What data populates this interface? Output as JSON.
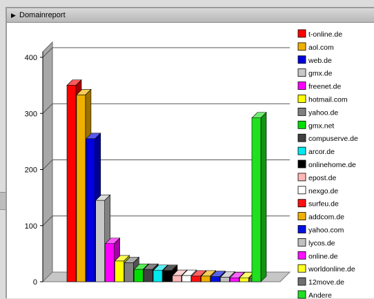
{
  "window": {
    "title": "Domainreport"
  },
  "chart_data": {
    "type": "bar",
    "title": "",
    "xlabel": "",
    "ylabel": "",
    "ylim": [
      0,
      400
    ],
    "yticks": [
      0,
      100,
      200,
      300,
      400
    ],
    "grid": true,
    "legend_position": "right",
    "categories": [
      "t-online.de",
      "aol.com",
      "web.de",
      "gmx.de",
      "freenet.de",
      "hotmail.com",
      "yahoo.de",
      "gmx.net",
      "compuserve.de",
      "arcor.de",
      "onlinehome.de",
      "epost.de",
      "nexgo.de",
      "surfeu.de",
      "addcom.de",
      "yahoo.com",
      "lycos.de",
      "online.de",
      "worldonline.de",
      "12move.de",
      "Andere"
    ],
    "values": [
      350,
      333,
      255,
      145,
      68,
      37,
      34,
      22,
      22,
      20,
      20,
      11,
      11,
      10,
      10,
      9,
      8,
      7,
      7,
      6,
      292
    ],
    "colors": [
      "#ff0000",
      "#f0b000",
      "#0000e0",
      "#c8c8c8",
      "#ff00ff",
      "#ffff00",
      "#808080",
      "#00e000",
      "#404040",
      "#00e8f0",
      "#000000",
      "#ffb8b8",
      "#ffffff",
      "#ff1010",
      "#f0b000",
      "#0010e0",
      "#c0c0c0",
      "#ff10ff",
      "#ffff20",
      "#707070",
      "#20e020"
    ]
  }
}
